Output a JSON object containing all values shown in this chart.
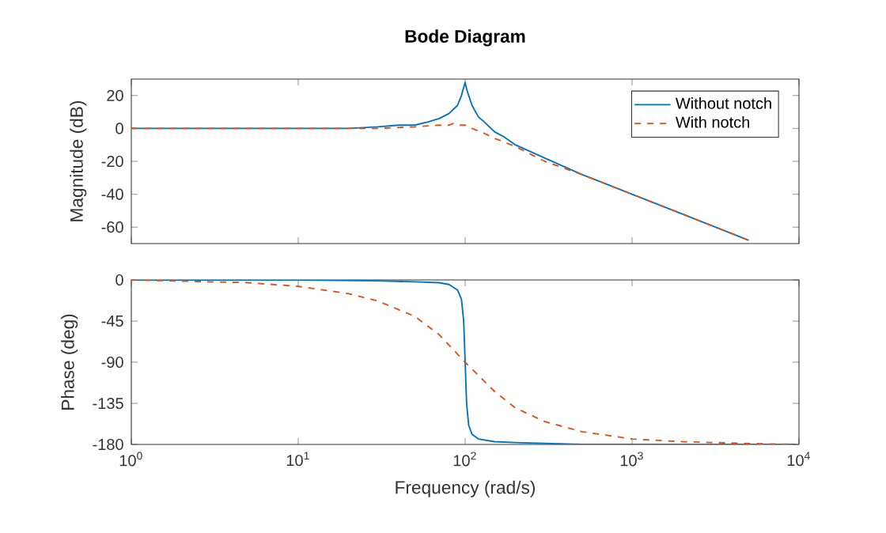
{
  "chart_data": [
    {
      "type": "line",
      "title": "Bode Diagram",
      "ylabel": "Magnitude (dB)",
      "log": "x",
      "xlim": [
        1,
        10000
      ],
      "ylim": [
        -70,
        30
      ],
      "yticks": [
        20,
        0,
        -20,
        -40,
        -60
      ],
      "xticks": [
        {
          "value": 1,
          "label": null
        },
        {
          "value": 10,
          "label": null
        },
        {
          "value": 100,
          "label": null
        },
        {
          "value": 1000,
          "label": null
        },
        {
          "value": 10000,
          "label": null
        }
      ],
      "tick_labels": "y",
      "grid": false,
      "legend": "top right",
      "series": [
        {
          "name": "Without notch",
          "color": "#0072bd",
          "line_style": "solid",
          "x": [
            1,
            10,
            20,
            30,
            40,
            50,
            60,
            70,
            80,
            90,
            95,
            98,
            100,
            102,
            105,
            110,
            120,
            130,
            150,
            170,
            200,
            300,
            500,
            1000,
            2000,
            5000
          ],
          "values": [
            0,
            0,
            0,
            1,
            2,
            2,
            4,
            6,
            9,
            14,
            20,
            25,
            28,
            24,
            20,
            14,
            7,
            4,
            -2,
            -5,
            -10,
            -18,
            -28,
            -40,
            -52,
            -68
          ]
        },
        {
          "name": "With notch",
          "color": "#d95319",
          "line_style": "dashed",
          "x": [
            1,
            10,
            30,
            50,
            70,
            80,
            85,
            90,
            100,
            110,
            130,
            150,
            200,
            300,
            500,
            1000,
            2000,
            5000
          ],
          "values": [
            0,
            0,
            0,
            1,
            2,
            2,
            3,
            2,
            2,
            0,
            -3,
            -6,
            -11,
            -20,
            -28,
            -40,
            -52,
            -68
          ]
        }
      ]
    },
    {
      "type": "line",
      "xlabel": "Frequency (rad/s)",
      "ylabel": "Phase (deg)",
      "log": "x",
      "xlim": [
        1,
        10000
      ],
      "ylim": [
        -180,
        0
      ],
      "yticks": [
        0,
        -45,
        -90,
        -135,
        -180
      ],
      "xticks": [
        {
          "value": 1,
          "label": "10$^{0}$"
        },
        {
          "value": 10,
          "label": "10$^{1}$"
        },
        {
          "value": 100,
          "label": "10$^{2}$"
        },
        {
          "value": 1000,
          "label": "10$^{3}$"
        },
        {
          "value": 10000,
          "label": "10$^{4}$"
        }
      ],
      "grid": false,
      "legend": false,
      "series": [
        {
          "color": "#0072bd",
          "line_style": "solid",
          "x": [
            1,
            10,
            30,
            50,
            70,
            80,
            90,
            95,
            98,
            100,
            102,
            105,
            110,
            120,
            150,
            200,
            500,
            1000,
            10000
          ],
          "values": [
            0,
            0,
            -1,
            -2,
            -3,
            -5,
            -11,
            -21,
            -45,
            -90,
            -135,
            -159,
            -169,
            -174,
            -177,
            -178,
            -180,
            -180,
            -180
          ]
        },
        {
          "color": "#d95319",
          "line_style": "dashed",
          "x": [
            1,
            3,
            5,
            10,
            20,
            30,
            50,
            70,
            100,
            150,
            200,
            300,
            500,
            1000,
            2000,
            5000,
            10000
          ],
          "values": [
            0,
            -2,
            -3,
            -7,
            -15,
            -23,
            -40,
            -60,
            -90,
            -122,
            -140,
            -155,
            -166,
            -174,
            -177,
            -179,
            -180
          ]
        }
      ]
    }
  ]
}
